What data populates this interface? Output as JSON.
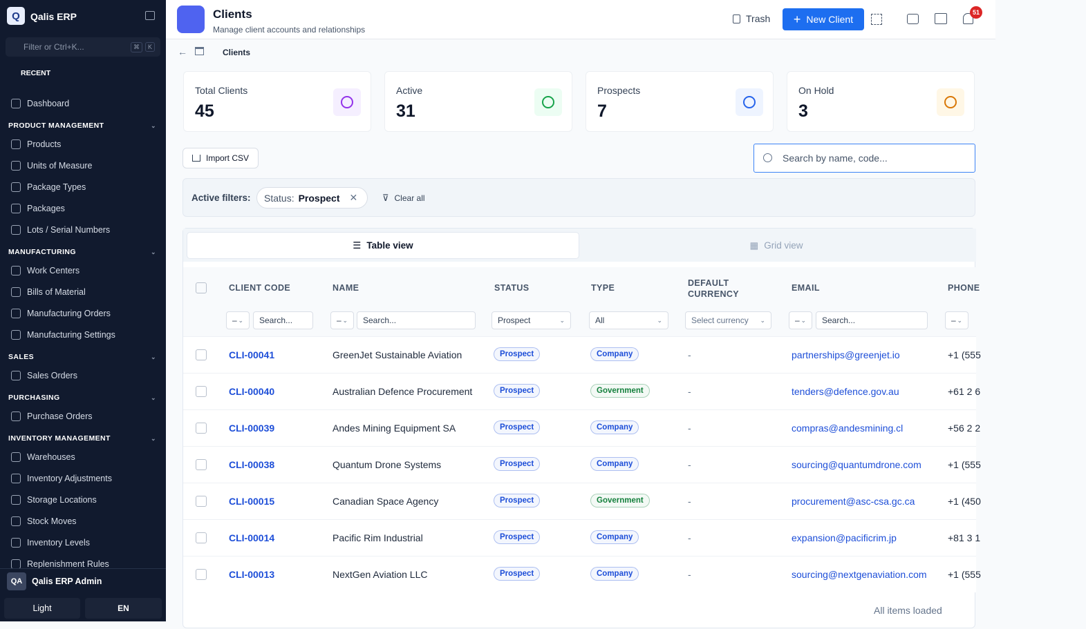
{
  "sidebar": {
    "logo": "Q",
    "brand": "Qalis ERP",
    "filter_placeholder": "Filter or Ctrl+K...",
    "shortcut": [
      "⌘",
      "K"
    ],
    "recent": "RECENT",
    "dashboard": "Dashboard",
    "sections": [
      {
        "title": "PRODUCT MANAGEMENT",
        "items": [
          "Products",
          "Units of Measure",
          "Package Types",
          "Packages",
          "Lots / Serial Numbers"
        ]
      },
      {
        "title": "MANUFACTURING",
        "items": [
          "Work Centers",
          "Bills of Material",
          "Manufacturing Orders",
          "Manufacturing Settings"
        ]
      },
      {
        "title": "SALES",
        "items": [
          "Sales Orders"
        ]
      },
      {
        "title": "PURCHASING",
        "items": [
          "Purchase Orders"
        ]
      },
      {
        "title": "INVENTORY MANAGEMENT",
        "items": [
          "Warehouses",
          "Inventory Adjustments",
          "Storage Locations",
          "Stock Moves",
          "Inventory Levels",
          "Replenishment Rules"
        ]
      }
    ],
    "user": {
      "initials": "QA",
      "name": "Qalis ERP Admin"
    },
    "theme": "Light",
    "language": "EN"
  },
  "header": {
    "title": "Clients",
    "subtitle": "Manage client accounts and relationships",
    "trash": "Trash",
    "new_client": "New Client",
    "notifications": 51
  },
  "breadcrumb": [
    "Clients"
  ],
  "stats": [
    {
      "label": "Total Clients",
      "value": 45,
      "color": "#9333ea",
      "bg": "#f5efff"
    },
    {
      "label": "Active",
      "value": 31,
      "color": "#16a34a",
      "bg": "#ecfdf3"
    },
    {
      "label": "Prospects",
      "value": 7,
      "color": "#2563eb",
      "bg": "#eef4ff"
    },
    {
      "label": "On Hold",
      "value": 3,
      "color": "#d97706",
      "bg": "#fff7e6"
    }
  ],
  "toolbar": {
    "import": "Import CSV",
    "search_placeholder": "Search by name, code..."
  },
  "filters": {
    "label": "Active filters:",
    "chip_key": "Status:",
    "chip_value": "Prospect",
    "clear": "Clear all"
  },
  "views": {
    "table": "Table view",
    "grid": "Grid view"
  },
  "table": {
    "columns": [
      "CLIENT CODE",
      "NAME",
      "STATUS",
      "TYPE",
      "DEFAULT CURRENCY",
      "EMAIL",
      "PHONE"
    ],
    "filter_row": {
      "operator": "–",
      "search": "Search...",
      "status": "Prospect",
      "type": "All",
      "currency": "Select currency"
    },
    "badge_colors": {
      "Prospect": "#1d4ed8",
      "Company": "#1d4ed8",
      "Government": "#15803d"
    },
    "rows": [
      [
        "CLI-00041",
        "GreenJet Sustainable Aviation",
        "Prospect",
        "Company",
        "-",
        "partnerships@greenjet.io",
        "+1 (555"
      ],
      [
        "CLI-00040",
        "Australian Defence Procurement",
        "Prospect",
        "Government",
        "-",
        "tenders@defence.gov.au",
        "+61 2 6"
      ],
      [
        "CLI-00039",
        "Andes Mining Equipment SA",
        "Prospect",
        "Company",
        "-",
        "compras@andesmining.cl",
        "+56 2 2"
      ],
      [
        "CLI-00038",
        "Quantum Drone Systems",
        "Prospect",
        "Company",
        "-",
        "sourcing@quantumdrone.com",
        "+1 (555"
      ],
      [
        "CLI-00015",
        "Canadian Space Agency",
        "Prospect",
        "Government",
        "-",
        "procurement@asc-csa.gc.ca",
        "+1 (450"
      ],
      [
        "CLI-00014",
        "Pacific Rim Industrial",
        "Prospect",
        "Company",
        "-",
        "expansion@pacificrim.jp",
        "+81 3 1"
      ],
      [
        "CLI-00013",
        "NextGen Aviation LLC",
        "Prospect",
        "Company",
        "-",
        "sourcing@nextgenaviation.com",
        "+1 (555"
      ]
    ]
  },
  "footer": "All items loaded"
}
